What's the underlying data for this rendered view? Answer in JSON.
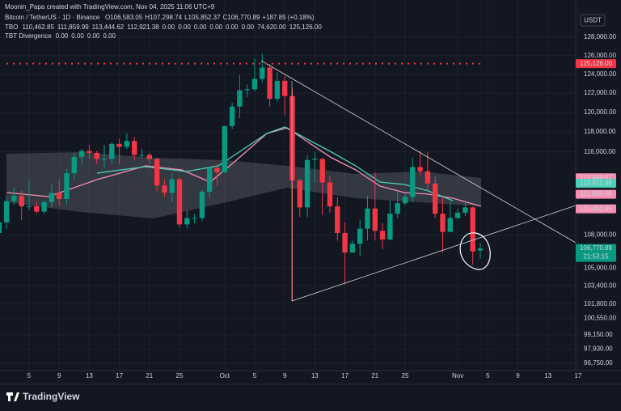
{
  "chart_data": {
    "type": "candlestick",
    "credit": "Moonin_Papa created with TradingView.com, Nov 04, 2025 11:06 UTC+9",
    "symbol": "Bitcoin / TetherUS · 1D · Binance",
    "ohlc_legend": [
      "O106,583.05",
      "H107,298.74",
      "L105,852.37",
      "C106,770.89",
      "+187.85 (+0.18%)"
    ],
    "indicators": [
      {
        "name": "TBO",
        "values": [
          "110,462.85",
          "111,859.99",
          "113,444.62",
          "112,921.38",
          "0.00",
          "0.00",
          "0.00",
          "0.00",
          "0.00",
          "0.00",
          "74,620.00",
          "125,126.00"
        ],
        "colors": [
          "#f48fb1",
          "#f48fb1",
          "#f48fb1",
          "#4dd0b8",
          "#ffffff",
          "#f5a623",
          "#4caf50",
          "#4caf50",
          "#9c27b0",
          "#2962ff",
          "#f23645",
          "#f23645"
        ]
      },
      {
        "name": "TBT Divergence",
        "values": [
          "0.00",
          "0.00",
          "0.00",
          "0.00"
        ],
        "colors": [
          "#4caf50",
          "#f5a623",
          "#ffeb3b",
          "#f48fb1"
        ]
      }
    ],
    "currency": "USDT",
    "brand": "TradingView",
    "log_scale": true,
    "up_color": "#089981",
    "down_color": "#f23645",
    "categories": [
      null,
      null,
      null,
      null,
      "5",
      null,
      null,
      null,
      "9",
      null,
      null,
      null,
      "13",
      null,
      null,
      null,
      "17",
      null,
      null,
      null,
      "21",
      null,
      null,
      null,
      "25",
      null,
      null,
      null,
      null,
      null,
      "Oct",
      null,
      null,
      null,
      "5",
      null,
      null,
      null,
      "9",
      null,
      null,
      null,
      "13",
      null,
      null,
      null,
      "17",
      null,
      null,
      null,
      "21",
      null,
      null,
      null,
      "25",
      null,
      null,
      null,
      null,
      null,
      null,
      "Nov",
      null,
      null,
      null,
      "5",
      null,
      null,
      null,
      "9",
      null,
      null,
      null,
      "13",
      null,
      null,
      null,
      "17"
    ],
    "open": [
      108200,
      109200,
      111200,
      111700,
      110700,
      110700,
      110200,
      111100,
      112000,
      111400,
      113900,
      115500,
      116100,
      115900,
      115300,
      115300,
      116800,
      116500,
      117100,
      115700,
      115700,
      115300,
      112700,
      112000,
      113300,
      109000,
      109600,
      109600,
      112100,
      114400,
      114000,
      118600,
      120600,
      122300,
      122400,
      123500,
      124700,
      121400,
      123300,
      121700,
      113200,
      110600,
      115200,
      115300,
      113000,
      110700,
      108200,
      106400,
      107200,
      108600,
      110500,
      108400,
      107600,
      110000,
      111000,
      111600,
      114500,
      114100,
      112900,
      110000,
      108300,
      109600,
      110100,
      110600,
      106583.05,
      null,
      null,
      null,
      null,
      null,
      null,
      null,
      null,
      null,
      null,
      null,
      null,
      null
    ],
    "high": [
      109900,
      111700,
      112500,
      112200,
      113300,
      111200,
      111300,
      112800,
      113200,
      114300,
      115900,
      116300,
      116700,
      116100,
      116700,
      117000,
      117300,
      117900,
      117500,
      116300,
      115900,
      115400,
      113300,
      113900,
      113500,
      110300,
      110000,
      112300,
      114500,
      114800,
      118600,
      121000,
      123900,
      122900,
      125700,
      126200,
      125100,
      124200,
      123800,
      122500,
      113400,
      115700,
      116000,
      115400,
      113600,
      111600,
      109200,
      107500,
      109400,
      111700,
      114000,
      109100,
      111300,
      112000,
      111900,
      115400,
      116100,
      116000,
      113600,
      111600,
      111100,
      110500,
      111200,
      110700,
      107298.74,
      null,
      null,
      null,
      null,
      null,
      null,
      null,
      null,
      null,
      null,
      null,
      null,
      null
    ],
    "low": [
      107300,
      108600,
      110800,
      109400,
      110300,
      110000,
      110000,
      110600,
      110800,
      110900,
      113300,
      114800,
      115300,
      114800,
      114400,
      114800,
      114800,
      116300,
      115200,
      115400,
      114900,
      112100,
      111600,
      111100,
      108700,
      108600,
      109100,
      109300,
      111600,
      112700,
      113900,
      118300,
      119400,
      121600,
      122200,
      123100,
      120600,
      121100,
      119700,
      102000,
      109700,
      109700,
      113000,
      109900,
      110100,
      107500,
      103500,
      106400,
      106100,
      107500,
      107500,
      106700,
      107500,
      109600,
      110800,
      111100,
      113700,
      112200,
      109600,
      106400,
      108300,
      109500,
      109800,
      105300,
      105852.37,
      null,
      null,
      null,
      null,
      null,
      null,
      null,
      null,
      null,
      null,
      null,
      null,
      null
    ],
    "close": [
      109200,
      111200,
      111700,
      110700,
      110700,
      110200,
      111100,
      112000,
      111400,
      113900,
      115500,
      116100,
      115900,
      115300,
      115300,
      116800,
      116500,
      117100,
      115700,
      115700,
      115300,
      112700,
      112000,
      113300,
      109000,
      109600,
      109600,
      112100,
      114400,
      114000,
      118600,
      120600,
      122300,
      122400,
      123500,
      124700,
      121400,
      123300,
      121700,
      113200,
      110600,
      115200,
      115300,
      113000,
      110700,
      108200,
      106400,
      107200,
      108600,
      110500,
      108400,
      107600,
      110000,
      111000,
      111600,
      114500,
      114100,
      112900,
      110000,
      108300,
      109600,
      110100,
      110600,
      106500,
      106770.89,
      null,
      null,
      null,
      null,
      null,
      null,
      null,
      null,
      null,
      null,
      null,
      null,
      null
    ],
    "ylim": [
      96150,
      131420
    ],
    "yticks": [
      {
        "value": 128000,
        "label": "128,000.00"
      },
      {
        "value": 126000,
        "label": "126,000.00"
      },
      {
        "value": 124000,
        "label": "124,000.00"
      },
      {
        "value": 122000,
        "label": "122,000.00"
      },
      {
        "value": 120000,
        "label": "120,000.00"
      },
      {
        "value": 118000,
        "label": "118,000.00"
      },
      {
        "value": 116000,
        "label": "116,000.00"
      },
      {
        "value": 108000,
        "label": "108,000.00"
      },
      {
        "value": 105000,
        "label": "105,000.00"
      },
      {
        "value": 103400,
        "label": "103,400.00"
      },
      {
        "value": 101800,
        "label": "101,800.00"
      },
      {
        "value": 100550,
        "label": "100,550.00"
      },
      {
        "value": 99150,
        "label": "99,150.00"
      },
      {
        "value": 97930,
        "label": "97,930.00"
      },
      {
        "value": 96750,
        "label": "96,750.00"
      }
    ],
    "grid": true,
    "price_badges": [
      {
        "value": 125126,
        "label": "125,126.00",
        "color": "#f23645",
        "dotted": true
      },
      {
        "value": 113444.62,
        "label": "113,444.62",
        "color": "#f48fb1"
      },
      {
        "value": 112921.38,
        "label": "112,921.38",
        "color": "#4dd0b8"
      },
      {
        "value": 111859.99,
        "label": "111,859.99",
        "color": "#f48fb1"
      },
      {
        "value": 110462.85,
        "label": "110,462.85",
        "color": "#f48fb1"
      },
      {
        "value": 106770.89,
        "label": "106,770.89",
        "color": "#089981",
        "countdown": "21:53:15"
      }
    ]
  }
}
